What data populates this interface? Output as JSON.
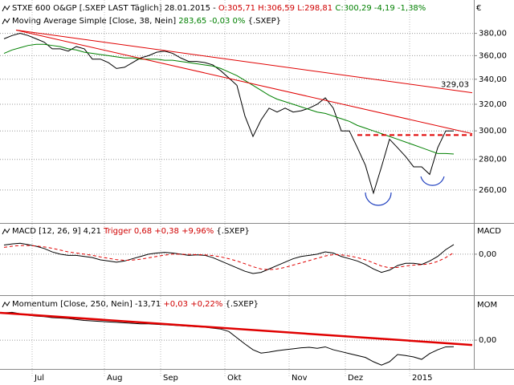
{
  "chart_data": [
    {
      "type": "line",
      "log": true,
      "series": [
        {
          "name": "STXE 600 O&GP [.SXEP LAST Täglich]",
          "date": "28.01.2015 -",
          "ohlc": "O:305,71 H:306,59 L:298,81",
          "change": "C:300,29 -4,19 -1,38%",
          "color": "#000000",
          "values": [
            375,
            378,
            380,
            378,
            375,
            372,
            366,
            366,
            364,
            368,
            366,
            357,
            357,
            354,
            349,
            350,
            354,
            358,
            360,
            363,
            364,
            362,
            358,
            355,
            355,
            354,
            352,
            347,
            341,
            335,
            311,
            296,
            308,
            317,
            314,
            317,
            314,
            315,
            317,
            320,
            325,
            317,
            300,
            300,
            288,
            276,
            258,
            275,
            294,
            288,
            282,
            275,
            275,
            270,
            288,
            300,
            300
          ]
        },
        {
          "name": "Moving Average Simple [Close, 38, Nein]",
          "value_text": "283,65 -0,03 0%",
          "source": "{.SXEP}",
          "color": "#008000",
          "values": [
            362,
            365,
            367,
            369,
            370,
            370,
            369,
            368,
            366,
            365,
            363,
            362,
            361,
            360,
            359,
            358,
            358,
            357,
            357,
            357,
            356,
            356,
            355,
            354,
            353,
            352,
            351,
            349,
            346,
            343,
            339,
            335,
            331,
            327,
            324,
            322,
            320,
            318,
            316,
            314,
            313,
            311,
            309,
            307,
            304,
            302,
            300,
            298,
            296,
            294,
            292,
            290,
            288,
            286,
            284,
            284,
            283.65
          ]
        }
      ],
      "categories": [
        null,
        null,
        null,
        null,
        "Jul",
        null,
        null,
        null,
        null,
        null,
        null,
        null,
        null,
        "Aug",
        null,
        null,
        null,
        null,
        null,
        null,
        "Sep",
        null,
        null,
        null,
        null,
        null,
        null,
        null,
        "Okt",
        null,
        null,
        null,
        null,
        null,
        null,
        null,
        "Nov",
        null,
        null,
        null,
        null,
        null,
        null,
        "Dez",
        null,
        null,
        null,
        null,
        null,
        null,
        null,
        "2015",
        null,
        null,
        null,
        null,
        null
      ],
      "trend_lines": [
        {
          "x": [
            1.5,
            58.3
          ],
          "y": [
            383,
            329.03
          ],
          "color": "#e00000",
          "label": "329,03"
        },
        {
          "x": [
            1.5,
            58.3
          ],
          "y": [
            383,
            298
          ],
          "color": "#e00000"
        },
        {
          "x": [
            44,
            58.3
          ],
          "y": [
            297,
            297
          ],
          "color": "#e00000",
          "dash": true
        }
      ],
      "currency": "€",
      "ylim": [
        240,
        408
      ],
      "yticks": [
        {
          "value": 260,
          "label": "260,00"
        },
        {
          "value": 280,
          "label": "280,00"
        },
        {
          "value": 300,
          "label": "300,00"
        },
        {
          "value": 320,
          "label": "320,00"
        },
        {
          "value": 340,
          "label": "340,00"
        },
        {
          "value": 360,
          "label": "360,00"
        },
        {
          "value": 380,
          "label": "380,00"
        }
      ],
      "grid": true
    },
    {
      "type": "line",
      "axis_label": "MACD",
      "source": "{.SXEP}",
      "series": [
        {
          "name": "MACD [12, 26, 9]",
          "value_text": "4,21",
          "color": "#000000",
          "values": [
            4,
            4.5,
            4.8,
            4.2,
            3.5,
            2.5,
            1,
            0,
            -0.5,
            -0.5,
            -1,
            -1.5,
            -2.5,
            -3,
            -3.5,
            -3,
            -2,
            -1,
            0,
            0.5,
            0.8,
            0.5,
            0,
            -0.5,
            -0.3,
            -0.5,
            -1.5,
            -3,
            -4.5,
            -6,
            -7.5,
            -8.5,
            -8,
            -6.5,
            -5,
            -3.5,
            -2,
            -1,
            -0.5,
            0,
            1,
            0.5,
            -1,
            -2,
            -3,
            -4.5,
            -6.5,
            -8,
            -7,
            -5,
            -4,
            -4,
            -4.5,
            -3,
            -1,
            2,
            4.21
          ]
        },
        {
          "name": "Trigger",
          "value_text": "0,68 +0,38 +9,96%",
          "color": "#e00000",
          "dash": true,
          "values": [
            3,
            3.5,
            3.8,
            3.8,
            3.6,
            3.2,
            2.6,
            1.8,
            1,
            0.5,
            0,
            -0.5,
            -1.2,
            -1.8,
            -2.4,
            -2.7,
            -2.6,
            -2.2,
            -1.6,
            -1,
            -0.4,
            0,
            0,
            -0.1,
            -0.2,
            -0.3,
            -0.6,
            -1.2,
            -2,
            -3,
            -4.2,
            -5.5,
            -6.5,
            -6.8,
            -6.5,
            -5.8,
            -4.8,
            -3.8,
            -2.8,
            -1.8,
            -0.8,
            -0.2,
            -0.3,
            -0.8,
            -1.5,
            -2.5,
            -3.8,
            -5.2,
            -6,
            -5.8,
            -5.2,
            -4.8,
            -4.6,
            -4.2,
            -3.2,
            -1.5,
            0.68
          ]
        }
      ],
      "ylim": [
        -18,
        13
      ],
      "yticks": [
        {
          "value": 0,
          "label": "0,00"
        }
      ],
      "grid": true
    },
    {
      "type": "line",
      "axis_label": "MOM",
      "source": "{.SXEP}",
      "series": [
        {
          "name": "Momentum [Close, 250, Nein]",
          "value_text": "-13,71",
          "change": "+0,03 +0,22%",
          "color": "#000000",
          "values": [
            57,
            58,
            55,
            52,
            50,
            49,
            47,
            46,
            45,
            43,
            41,
            40,
            39,
            38,
            37,
            36,
            35,
            34,
            34,
            33,
            32,
            31,
            30,
            29,
            28,
            27,
            25,
            23,
            18,
            5,
            -8,
            -20,
            -27,
            -25,
            -22,
            -20,
            -18,
            -16,
            -15,
            -17,
            -14,
            -20,
            -24,
            -28,
            -32,
            -36,
            -45,
            -52,
            -45,
            -30,
            -32,
            -35,
            -40,
            -28,
            -20,
            -14,
            -13.71
          ]
        }
      ],
      "trend_lines": [
        {
          "x": [
            -0.5,
            58.3
          ],
          "y": [
            57,
            -10
          ],
          "color": "#e00000",
          "width": 2.5
        }
      ],
      "ylim": [
        -60,
        87
      ],
      "yticks": [
        {
          "value": 0,
          "label": "0,00"
        }
      ],
      "grid": true
    }
  ]
}
